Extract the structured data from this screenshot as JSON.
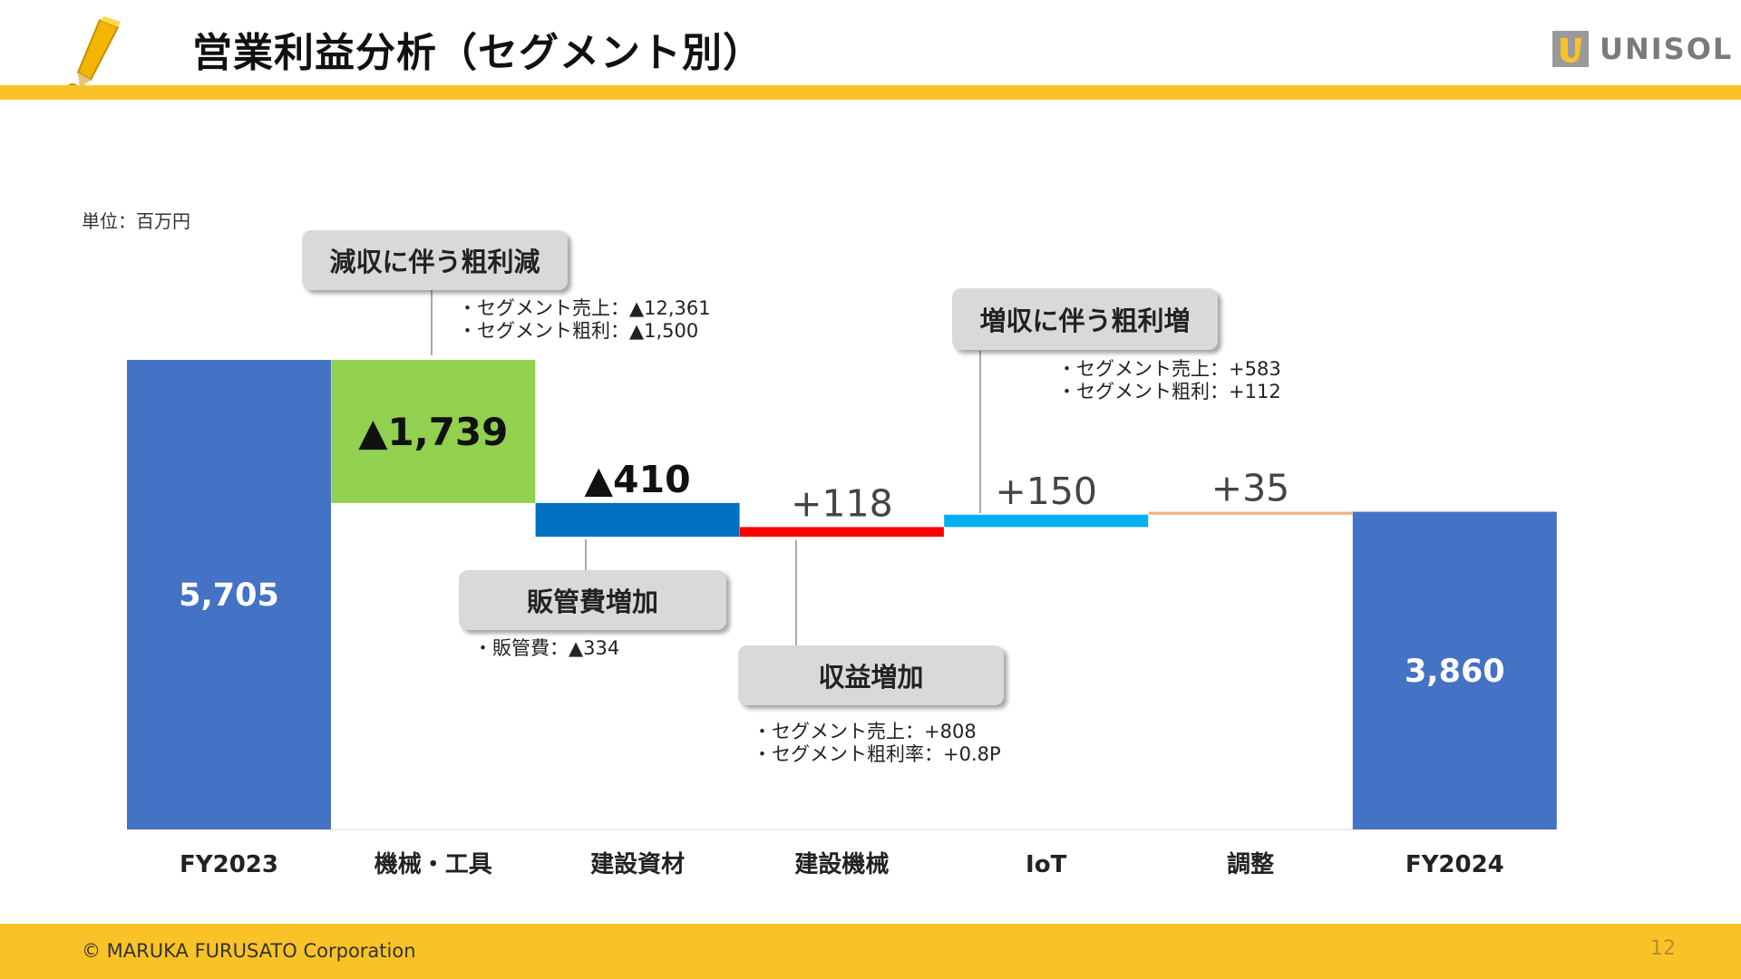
{
  "header": {
    "title": "営業利益分析（セグメント別）",
    "accent": "#f9c327"
  },
  "logo": {
    "text": "UNISOL",
    "icon": "unisol-logo-icon"
  },
  "unit_label": "単位：百万円",
  "chart_data": {
    "type": "waterfall",
    "title": "営業利益分析（セグメント別）",
    "unit": "百万円",
    "categories": [
      "FY2023",
      "機械・工具",
      "建設資材",
      "建設機械",
      "IoT",
      "調整",
      "FY2024"
    ],
    "values": [
      5705,
      -1739,
      -410,
      118,
      150,
      35,
      3860
    ],
    "kinds": [
      "total",
      "delta",
      "delta",
      "delta",
      "delta",
      "delta",
      "total"
    ],
    "labels": [
      "5,705",
      "▲1,739",
      "▲410",
      "+118",
      "+150",
      "+35",
      "3,860"
    ],
    "colors": [
      "#4472c4",
      "#92d050",
      "#0070c0",
      "#ff0000",
      "#00b0f0",
      "#f4b183",
      "#4472c4"
    ],
    "ylim": [
      0,
      5705
    ]
  },
  "callouts": [
    {
      "title": "減収に伴う粗利減",
      "notes": [
        "・セグメント売上：▲12,361",
        "・セグメント粗利：▲1,500"
      ]
    },
    {
      "title": "販管費増加",
      "notes": [
        "・販管費：▲334"
      ]
    },
    {
      "title": "収益増加",
      "notes": [
        "・セグメント売上：+808",
        "・セグメント粗利率：+0.8P"
      ]
    },
    {
      "title": "増収に伴う粗利増",
      "notes": [
        "・セグメント売上：+583",
        "・セグメント粗利：+112"
      ]
    }
  ],
  "footer": {
    "copyright": "© MARUKA FURUSATO Corporation",
    "page": "12"
  }
}
